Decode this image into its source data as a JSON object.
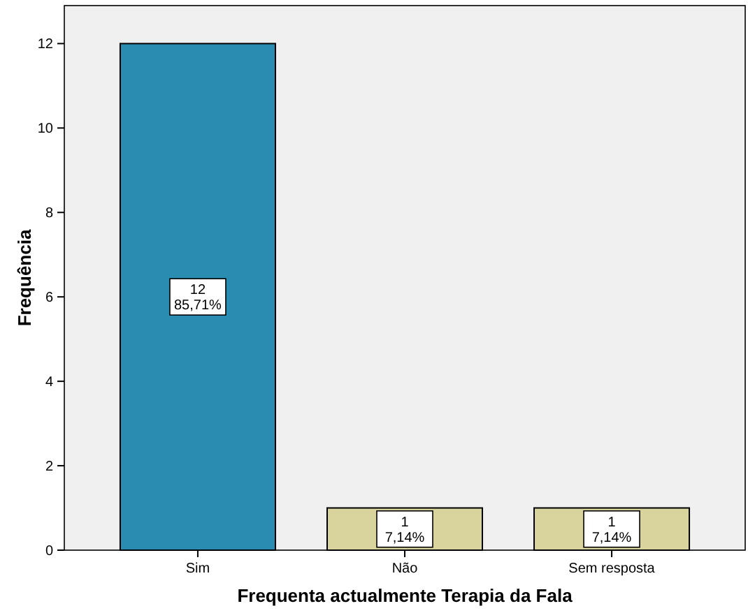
{
  "chart_data": {
    "type": "bar",
    "xlabel": "Frequenta actualmente Terapia da Fala",
    "ylabel": "Frequência",
    "categories": [
      "Sim",
      "Não",
      "Sem resposta"
    ],
    "values": [
      12,
      1,
      1
    ],
    "colors": [
      "#2a8cb0",
      "#d9d49e",
      "#d9d49e"
    ],
    "value_labels": [
      "12\n85,71%",
      "1\n7,14%",
      "1\n7,14%"
    ],
    "ylim": [
      0,
      12.9
    ],
    "yticks": [
      0,
      2,
      4,
      6,
      8,
      10,
      12
    ],
    "grid": false
  }
}
